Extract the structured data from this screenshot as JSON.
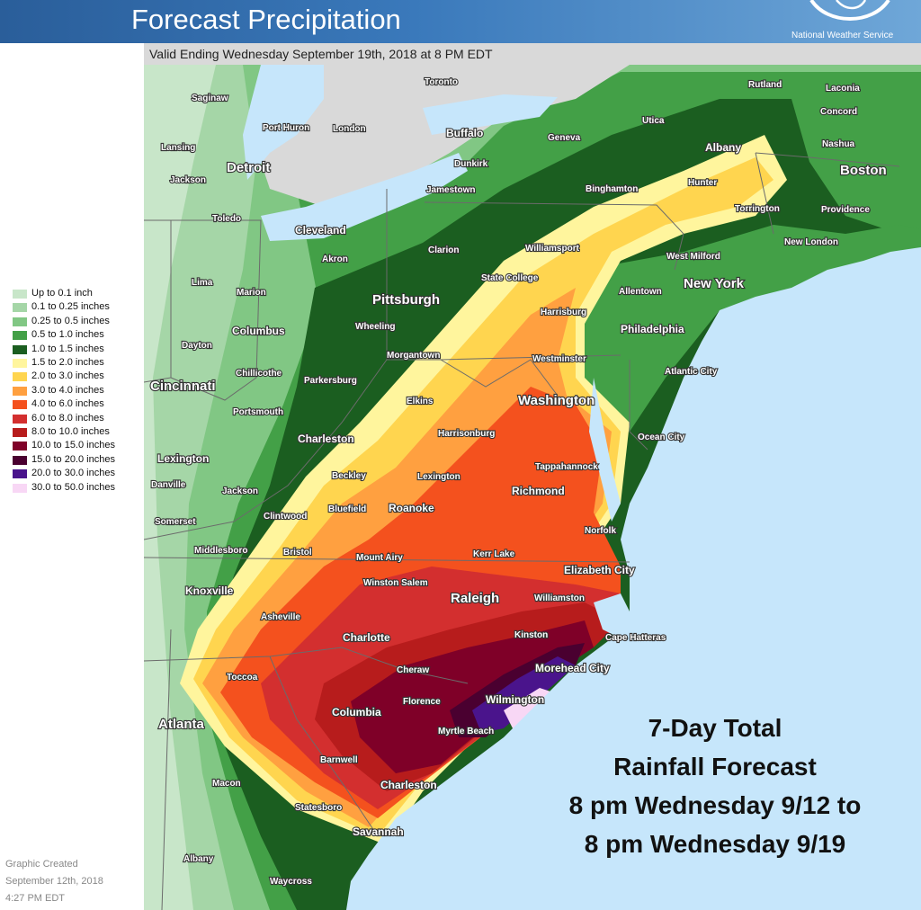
{
  "header": {
    "title": "Forecast Precipitation",
    "agency": "National Weather Service"
  },
  "valid_text": "Valid Ending Wednesday September 19th, 2018 at 8 PM EDT",
  "legend": [
    {
      "label": "Up to 0.1 inch",
      "color": "#c8e6c9"
    },
    {
      "label": "0.1 to 0.25 inches",
      "color": "#a5d6a7"
    },
    {
      "label": "0.25 to 0.5 inches",
      "color": "#81c784"
    },
    {
      "label": "0.5 to 1.0 inches",
      "color": "#43a047"
    },
    {
      "label": "1.0 to 1.5 inches",
      "color": "#1b5e20"
    },
    {
      "label": "1.5 to 2.0 inches",
      "color": "#fff59d"
    },
    {
      "label": "2.0 to 3.0 inches",
      "color": "#ffd54f"
    },
    {
      "label": "3.0 to 4.0 inches",
      "color": "#ffa040"
    },
    {
      "label": "4.0 to 6.0 inches",
      "color": "#f4511e"
    },
    {
      "label": "6.0 to 8.0 inches",
      "color": "#d32f2f"
    },
    {
      "label": "8.0 to 10.0 inches",
      "color": "#b71c1c"
    },
    {
      "label": "10.0 to 15.0 inches",
      "color": "#7f0028"
    },
    {
      "label": "15.0 to 20.0 inches",
      "color": "#4a0030"
    },
    {
      "label": "20.0 to 30.0 inches",
      "color": "#4a148c"
    },
    {
      "label": "30.0 to 50.0 inches",
      "color": "#f8d7f5"
    }
  ],
  "cities": [
    {
      "name": "Saginaw",
      "size": "s"
    },
    {
      "name": "Toronto",
      "size": "s"
    },
    {
      "name": "Rutland",
      "size": "s"
    },
    {
      "name": "Laconia",
      "size": "s"
    },
    {
      "name": "Port Huron",
      "size": "s"
    },
    {
      "name": "London",
      "size": "s"
    },
    {
      "name": "Utica",
      "size": "s"
    },
    {
      "name": "Concord",
      "size": "s"
    },
    {
      "name": "Buffalo",
      "size": "m"
    },
    {
      "name": "Geneva",
      "size": "s"
    },
    {
      "name": "Lansing",
      "size": "s"
    },
    {
      "name": "Albany",
      "size": "m"
    },
    {
      "name": "Nashua",
      "size": "s"
    },
    {
      "name": "Dunkirk",
      "size": "s"
    },
    {
      "name": "Detroit",
      "size": "l"
    },
    {
      "name": "Boston",
      "size": "l"
    },
    {
      "name": "Jackson",
      "size": "s"
    },
    {
      "name": "Binghamton",
      "size": "s"
    },
    {
      "name": "Hunter",
      "size": "s"
    },
    {
      "name": "Jamestown",
      "size": "s"
    },
    {
      "name": "Torrington",
      "size": "s"
    },
    {
      "name": "Providence",
      "size": "s"
    },
    {
      "name": "Toledo",
      "size": "s"
    },
    {
      "name": "Cleveland",
      "size": "m"
    },
    {
      "name": "Williamsport",
      "size": "s"
    },
    {
      "name": "New London",
      "size": "s"
    },
    {
      "name": "Clarion",
      "size": "s"
    },
    {
      "name": "Akron",
      "size": "s"
    },
    {
      "name": "West Milford",
      "size": "s"
    },
    {
      "name": "State College",
      "size": "s"
    },
    {
      "name": "Lima",
      "size": "s"
    },
    {
      "name": "Marion",
      "size": "s"
    },
    {
      "name": "New York",
      "size": "l"
    },
    {
      "name": "Allentown",
      "size": "s"
    },
    {
      "name": "Pittsburgh",
      "size": "l"
    },
    {
      "name": "Harrisburg",
      "size": "s"
    },
    {
      "name": "Wheeling",
      "size": "s"
    },
    {
      "name": "Columbus",
      "size": "m"
    },
    {
      "name": "Philadelphia",
      "size": "m"
    },
    {
      "name": "Dayton",
      "size": "s"
    },
    {
      "name": "Morgantown",
      "size": "s"
    },
    {
      "name": "Westminster",
      "size": "s"
    },
    {
      "name": "Atlantic City",
      "size": "s"
    },
    {
      "name": "Chillicothe",
      "size": "s"
    },
    {
      "name": "Parkersburg",
      "size": "s"
    },
    {
      "name": "Cincinnati",
      "size": "l"
    },
    {
      "name": "Washington",
      "size": "l"
    },
    {
      "name": "Elkins",
      "size": "s"
    },
    {
      "name": "Portsmouth",
      "size": "s"
    },
    {
      "name": "Harrisonburg",
      "size": "s"
    },
    {
      "name": "Charleston",
      "size": "m"
    },
    {
      "name": "Ocean City",
      "size": "s"
    },
    {
      "name": "Lexington",
      "size": "m"
    },
    {
      "name": "Tappahannock",
      "size": "s"
    },
    {
      "name": "Lexington",
      "size": "s"
    },
    {
      "name": "Beckley",
      "size": "s"
    },
    {
      "name": "Danville",
      "size": "s"
    },
    {
      "name": "Jackson",
      "size": "s"
    },
    {
      "name": "Richmond",
      "size": "m"
    },
    {
      "name": "Bluefield",
      "size": "s"
    },
    {
      "name": "Roanoke",
      "size": "m"
    },
    {
      "name": "Clintwood",
      "size": "s"
    },
    {
      "name": "Somerset",
      "size": "s"
    },
    {
      "name": "Norfolk",
      "size": "s"
    },
    {
      "name": "Middlesboro",
      "size": "s"
    },
    {
      "name": "Bristol",
      "size": "s"
    },
    {
      "name": "Kerr Lake",
      "size": "s"
    },
    {
      "name": "Mount Airy",
      "size": "s"
    },
    {
      "name": "Elizabeth City",
      "size": "m"
    },
    {
      "name": "Winston Salem",
      "size": "s"
    },
    {
      "name": "Knoxville",
      "size": "m"
    },
    {
      "name": "Raleigh",
      "size": "l"
    },
    {
      "name": "Williamston",
      "size": "s"
    },
    {
      "name": "Asheville",
      "size": "s"
    },
    {
      "name": "Cape Hatteras",
      "size": "s"
    },
    {
      "name": "Kinston",
      "size": "s"
    },
    {
      "name": "Charlotte",
      "size": "m"
    },
    {
      "name": "Morehead City",
      "size": "m"
    },
    {
      "name": "Cheraw",
      "size": "s"
    },
    {
      "name": "Toccoa",
      "size": "s"
    },
    {
      "name": "Wilmington",
      "size": "m"
    },
    {
      "name": "Florence",
      "size": "s"
    },
    {
      "name": "Columbia",
      "size": "m"
    },
    {
      "name": "Atlanta",
      "size": "l"
    },
    {
      "name": "Myrtle Beach",
      "size": "s"
    },
    {
      "name": "Barnwell",
      "size": "s"
    },
    {
      "name": "Macon",
      "size": "s"
    },
    {
      "name": "Charleston",
      "size": "m"
    },
    {
      "name": "Statesboro",
      "size": "s"
    },
    {
      "name": "Savannah",
      "size": "m"
    },
    {
      "name": "Albany",
      "size": "s"
    },
    {
      "name": "Waycross",
      "size": "s"
    }
  ],
  "title_block": {
    "line1": "7-Day Total",
    "line2": "Rainfall Forecast",
    "line3": "8 pm Wednesday 9/12 to",
    "line4": "8 pm Wednesday 9/19"
  },
  "created": {
    "line1": "Graphic Created",
    "line2": "September 12th, 2018",
    "line3": "4:27 PM EDT"
  }
}
